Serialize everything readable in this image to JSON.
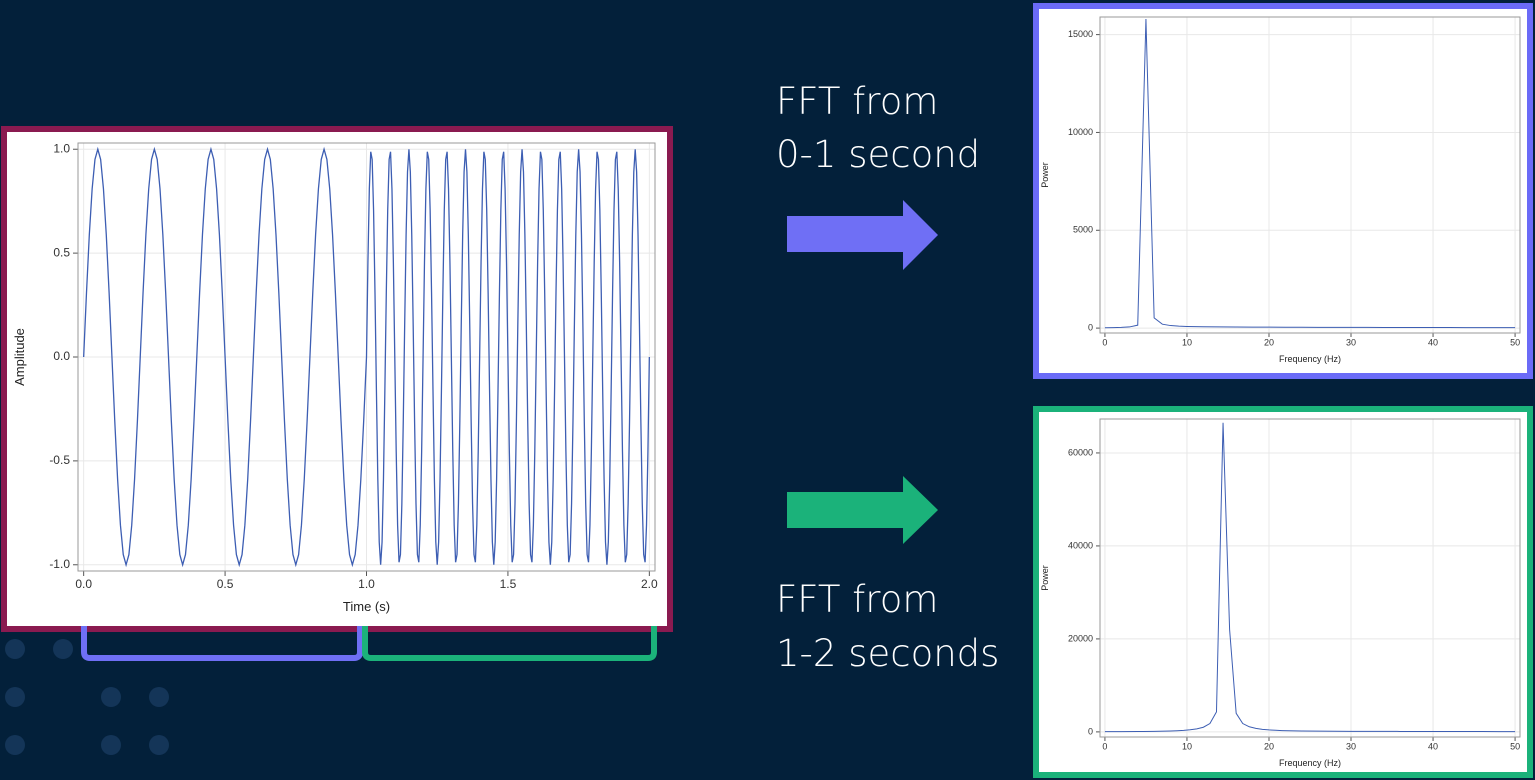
{
  "chart_data": [
    {
      "type": "line",
      "x_label": "Time (s)",
      "y_label": "Amplitude",
      "grid": true,
      "xlim": [
        -0.02,
        2.02
      ],
      "ylim": [
        -1.03,
        1.03
      ],
      "xticks": [
        {
          "value": 0,
          "label": "0.0"
        },
        {
          "value": 0.5,
          "label": "0.5"
        },
        {
          "value": 1,
          "label": "1.0"
        },
        {
          "value": 1.5,
          "label": "1.5"
        },
        {
          "value": 2,
          "label": "2.0"
        }
      ],
      "yticks": [
        {
          "value": -1,
          "label": "-1.0"
        },
        {
          "value": -0.5,
          "label": "-0.5"
        },
        {
          "value": 0,
          "label": "0.0"
        },
        {
          "value": 0.5,
          "label": "0.5"
        },
        {
          "value": 1,
          "label": "1.0"
        }
      ],
      "color": "#3d5eb3",
      "x": [
        0,
        0.01,
        0.02,
        0.03,
        0.04,
        0.05,
        0.06,
        0.07,
        0.08,
        0.09,
        0.1,
        0.11,
        0.12,
        0.13,
        0.14,
        0.15,
        0.16,
        0.17,
        0.18,
        0.19,
        0.2,
        0.21,
        0.22,
        0.23,
        0.24,
        0.25,
        0.26,
        0.27,
        0.28,
        0.29,
        0.3,
        0.31,
        0.32,
        0.33,
        0.34,
        0.35,
        0.36,
        0.37,
        0.38,
        0.39,
        0.4,
        0.41,
        0.42,
        0.43,
        0.44,
        0.45,
        0.46,
        0.47,
        0.48,
        0.49,
        0.5,
        0.51,
        0.52,
        0.53,
        0.54,
        0.55,
        0.56,
        0.57,
        0.58,
        0.59,
        0.6,
        0.61,
        0.62,
        0.63,
        0.64,
        0.65,
        0.66,
        0.67,
        0.68,
        0.69,
        0.7,
        0.71,
        0.72,
        0.73,
        0.74,
        0.75,
        0.76,
        0.77,
        0.78,
        0.79,
        0.8,
        0.81,
        0.82,
        0.83,
        0.84,
        0.85,
        0.86,
        0.87,
        0.88,
        0.89,
        0.9,
        0.91,
        0.92,
        0.93,
        0.94,
        0.95,
        0.96,
        0.97,
        0.98,
        0.99,
        1,
        1.005,
        1.01,
        1.015,
        1.02,
        1.025,
        1.03,
        1.035,
        1.04,
        1.045,
        1.05,
        1.055,
        1.06,
        1.065,
        1.07,
        1.075,
        1.08,
        1.085,
        1.09,
        1.095,
        1.1,
        1.105,
        1.11,
        1.115,
        1.12,
        1.125,
        1.13,
        1.135,
        1.14,
        1.145,
        1.15,
        1.155,
        1.16,
        1.165,
        1.17,
        1.175,
        1.18,
        1.185,
        1.19,
        1.195,
        1.2,
        1.205,
        1.21,
        1.215,
        1.22,
        1.225,
        1.23,
        1.235,
        1.24,
        1.245,
        1.25,
        1.255,
        1.26,
        1.265,
        1.27,
        1.275,
        1.28,
        1.285,
        1.29,
        1.295,
        1.3,
        1.305,
        1.31,
        1.315,
        1.32,
        1.325,
        1.33,
        1.335,
        1.34,
        1.345,
        1.35,
        1.355,
        1.36,
        1.365,
        1.37,
        1.375,
        1.38,
        1.385,
        1.39,
        1.395,
        1.4,
        1.405,
        1.41,
        1.415,
        1.42,
        1.425,
        1.43,
        1.435,
        1.44,
        1.445,
        1.45,
        1.455,
        1.46,
        1.465,
        1.47,
        1.475,
        1.48,
        1.485,
        1.49,
        1.495,
        1.5,
        1.505,
        1.51,
        1.515,
        1.52,
        1.525,
        1.53,
        1.535,
        1.54,
        1.545,
        1.55,
        1.555,
        1.56,
        1.565,
        1.57,
        1.575,
        1.58,
        1.585,
        1.59,
        1.595,
        1.6,
        1.605,
        1.61,
        1.615,
        1.62,
        1.625,
        1.63,
        1.635,
        1.64,
        1.645,
        1.65,
        1.655,
        1.66,
        1.665,
        1.67,
        1.675,
        1.68,
        1.685,
        1.69,
        1.695,
        1.7,
        1.705,
        1.71,
        1.715,
        1.72,
        1.725,
        1.73,
        1.735,
        1.74,
        1.745,
        1.75,
        1.755,
        1.76,
        1.765,
        1.77,
        1.775,
        1.78,
        1.785,
        1.79,
        1.795,
        1.8,
        1.805,
        1.81,
        1.815,
        1.82,
        1.825,
        1.83,
        1.835,
        1.84,
        1.845,
        1.85,
        1.855,
        1.86,
        1.865,
        1.87,
        1.875,
        1.88,
        1.885,
        1.89,
        1.895,
        1.9,
        1.905,
        1.91,
        1.915,
        1.92,
        1.925,
        1.93,
        1.935,
        1.94,
        1.945,
        1.95,
        1.955,
        1.96,
        1.965,
        1.97,
        1.975,
        1.98,
        1.985,
        1.99,
        1.995,
        2
      ],
      "values": [
        0,
        0.309,
        0.588,
        0.809,
        0.951,
        1,
        0.951,
        0.809,
        0.588,
        0.309,
        0,
        -0.309,
        -0.588,
        -0.809,
        -0.951,
        -1,
        -0.951,
        -0.809,
        -0.588,
        -0.309,
        0,
        0.309,
        0.588,
        0.809,
        0.951,
        1,
        0.951,
        0.809,
        0.588,
        0.309,
        0,
        -0.309,
        -0.588,
        -0.809,
        -0.951,
        -1,
        -0.951,
        -0.809,
        -0.588,
        -0.309,
        0,
        0.309,
        0.588,
        0.809,
        0.951,
        1,
        0.951,
        0.809,
        0.588,
        0.309,
        0,
        -0.309,
        -0.588,
        -0.809,
        -0.951,
        -1,
        -0.951,
        -0.809,
        -0.588,
        -0.309,
        0,
        0.309,
        0.588,
        0.809,
        0.951,
        1,
        0.951,
        0.809,
        0.588,
        0.309,
        0,
        -0.309,
        -0.588,
        -0.809,
        -0.951,
        -1,
        -0.951,
        -0.809,
        -0.588,
        -0.309,
        0,
        0.309,
        0.588,
        0.809,
        0.951,
        1,
        0.951,
        0.809,
        0.588,
        0.309,
        0,
        -0.309,
        -0.588,
        -0.809,
        -0.951,
        -1,
        -0.951,
        -0.809,
        -0.588,
        -0.309,
        0,
        0.454,
        0.809,
        0.988,
        0.951,
        0.707,
        0.309,
        -0.156,
        -0.588,
        -0.891,
        -1,
        -0.891,
        -0.588,
        -0.156,
        0.309,
        0.707,
        0.951,
        0.988,
        0.809,
        0.454,
        0,
        -0.454,
        -0.809,
        -0.988,
        -0.951,
        -0.707,
        -0.309,
        0.156,
        0.588,
        0.891,
        1,
        0.891,
        0.588,
        0.156,
        -0.309,
        -0.707,
        -0.951,
        -0.988,
        -0.809,
        -0.454,
        0,
        0.454,
        0.809,
        0.988,
        0.951,
        0.707,
        0.309,
        -0.156,
        -0.588,
        -0.891,
        -1,
        -0.891,
        -0.588,
        -0.156,
        0.309,
        0.707,
        0.951,
        0.988,
        0.809,
        0.454,
        0,
        -0.454,
        -0.809,
        -0.988,
        -0.951,
        -0.707,
        -0.309,
        0.156,
        0.588,
        0.891,
        1,
        0.891,
        0.588,
        0.156,
        -0.309,
        -0.707,
        -0.951,
        -0.988,
        -0.809,
        -0.454,
        0,
        0.454,
        0.809,
        0.988,
        0.951,
        0.707,
        0.309,
        -0.156,
        -0.588,
        -0.891,
        -1,
        -0.891,
        -0.588,
        -0.156,
        0.309,
        0.707,
        0.951,
        0.988,
        0.809,
        0.454,
        0,
        -0.454,
        -0.809,
        -0.988,
        -0.951,
        -0.707,
        -0.309,
        0.156,
        0.588,
        0.891,
        1,
        0.891,
        0.588,
        0.156,
        -0.309,
        -0.707,
        -0.951,
        -0.988,
        -0.809,
        -0.454,
        0,
        0.454,
        0.809,
        0.988,
        0.951,
        0.707,
        0.309,
        -0.156,
        -0.588,
        -0.891,
        -1,
        -0.891,
        -0.588,
        -0.156,
        0.309,
        0.707,
        0.951,
        0.988,
        0.809,
        0.454,
        0,
        -0.454,
        -0.809,
        -0.988,
        -0.951,
        -0.707,
        -0.309,
        0.156,
        0.588,
        0.891,
        1,
        0.891,
        0.588,
        0.156,
        -0.309,
        -0.707,
        -0.951,
        -0.988,
        -0.809,
        -0.454,
        0,
        0.454,
        0.809,
        0.988,
        0.951,
        0.707,
        0.309,
        -0.156,
        -0.588,
        -0.891,
        -1,
        -0.891,
        -0.588,
        -0.156,
        0.309,
        0.707,
        0.951,
        0.988,
        0.809,
        0.454,
        0,
        -0.454,
        -0.809,
        -0.988,
        -0.951,
        -0.707,
        -0.309,
        0.156,
        0.588,
        0.891,
        1,
        0.891,
        0.588,
        0.156,
        -0.309,
        -0.707,
        -0.951,
        -0.988,
        -0.809,
        -0.454,
        0
      ]
    },
    {
      "type": "line",
      "x_label": "Frequency (Hz)",
      "y_label": "Power",
      "grid": true,
      "xlim": [
        -0.6,
        50.6
      ],
      "ylim": [
        -250,
        15900
      ],
      "xticks": [
        0,
        10,
        20,
        30,
        40,
        50
      ],
      "yticks": [
        0,
        5000,
        10000,
        15000
      ],
      "color": "#3d5eb3",
      "x": [
        0,
        1,
        2,
        3,
        4,
        5,
        6,
        7,
        8,
        9,
        10,
        12,
        14,
        16,
        18,
        20,
        22,
        24,
        26,
        28,
        30,
        32,
        34,
        36,
        38,
        40,
        42,
        44,
        46,
        48,
        50
      ],
      "values": [
        20,
        25,
        35,
        60,
        150,
        15800,
        520,
        200,
        130,
        100,
        85,
        70,
        60,
        55,
        50,
        48,
        45,
        43,
        40,
        38,
        36,
        35,
        33,
        32,
        30,
        30,
        28,
        27,
        26,
        25,
        25
      ]
    },
    {
      "type": "line",
      "x_label": "Frequency (Hz)",
      "y_label": "Power",
      "grid": true,
      "xlim": [
        -0.6,
        50.6
      ],
      "ylim": [
        -1100,
        67300
      ],
      "xticks": [
        0,
        10,
        20,
        30,
        40,
        50
      ],
      "yticks": [
        0,
        20000,
        40000,
        60000
      ],
      "color": "#3d5eb3",
      "x": [
        0,
        2,
        4,
        6,
        8,
        8.8,
        9.6,
        10.4,
        11.2,
        12,
        12.8,
        13.6,
        14.4,
        15.2,
        16,
        16.8,
        17.6,
        18.4,
        19.2,
        20,
        20.8,
        21.6,
        22.4,
        23.2,
        24,
        26,
        28,
        30,
        32,
        34,
        36,
        38,
        40,
        42,
        44,
        46,
        48,
        50
      ],
      "values": [
        50,
        60,
        80,
        120,
        200,
        250,
        330,
        450,
        650,
        1000,
        1800,
        4300,
        66500,
        22000,
        4000,
        1800,
        1100,
        750,
        550,
        420,
        340,
        280,
        240,
        210,
        190,
        160,
        140,
        120,
        110,
        100,
        95,
        90,
        85,
        80,
        75,
        70,
        65,
        60
      ]
    }
  ],
  "captions": [
    [
      "FFT from",
      "0-1 second"
    ],
    [
      "FFT from",
      "1-2 seconds"
    ]
  ]
}
